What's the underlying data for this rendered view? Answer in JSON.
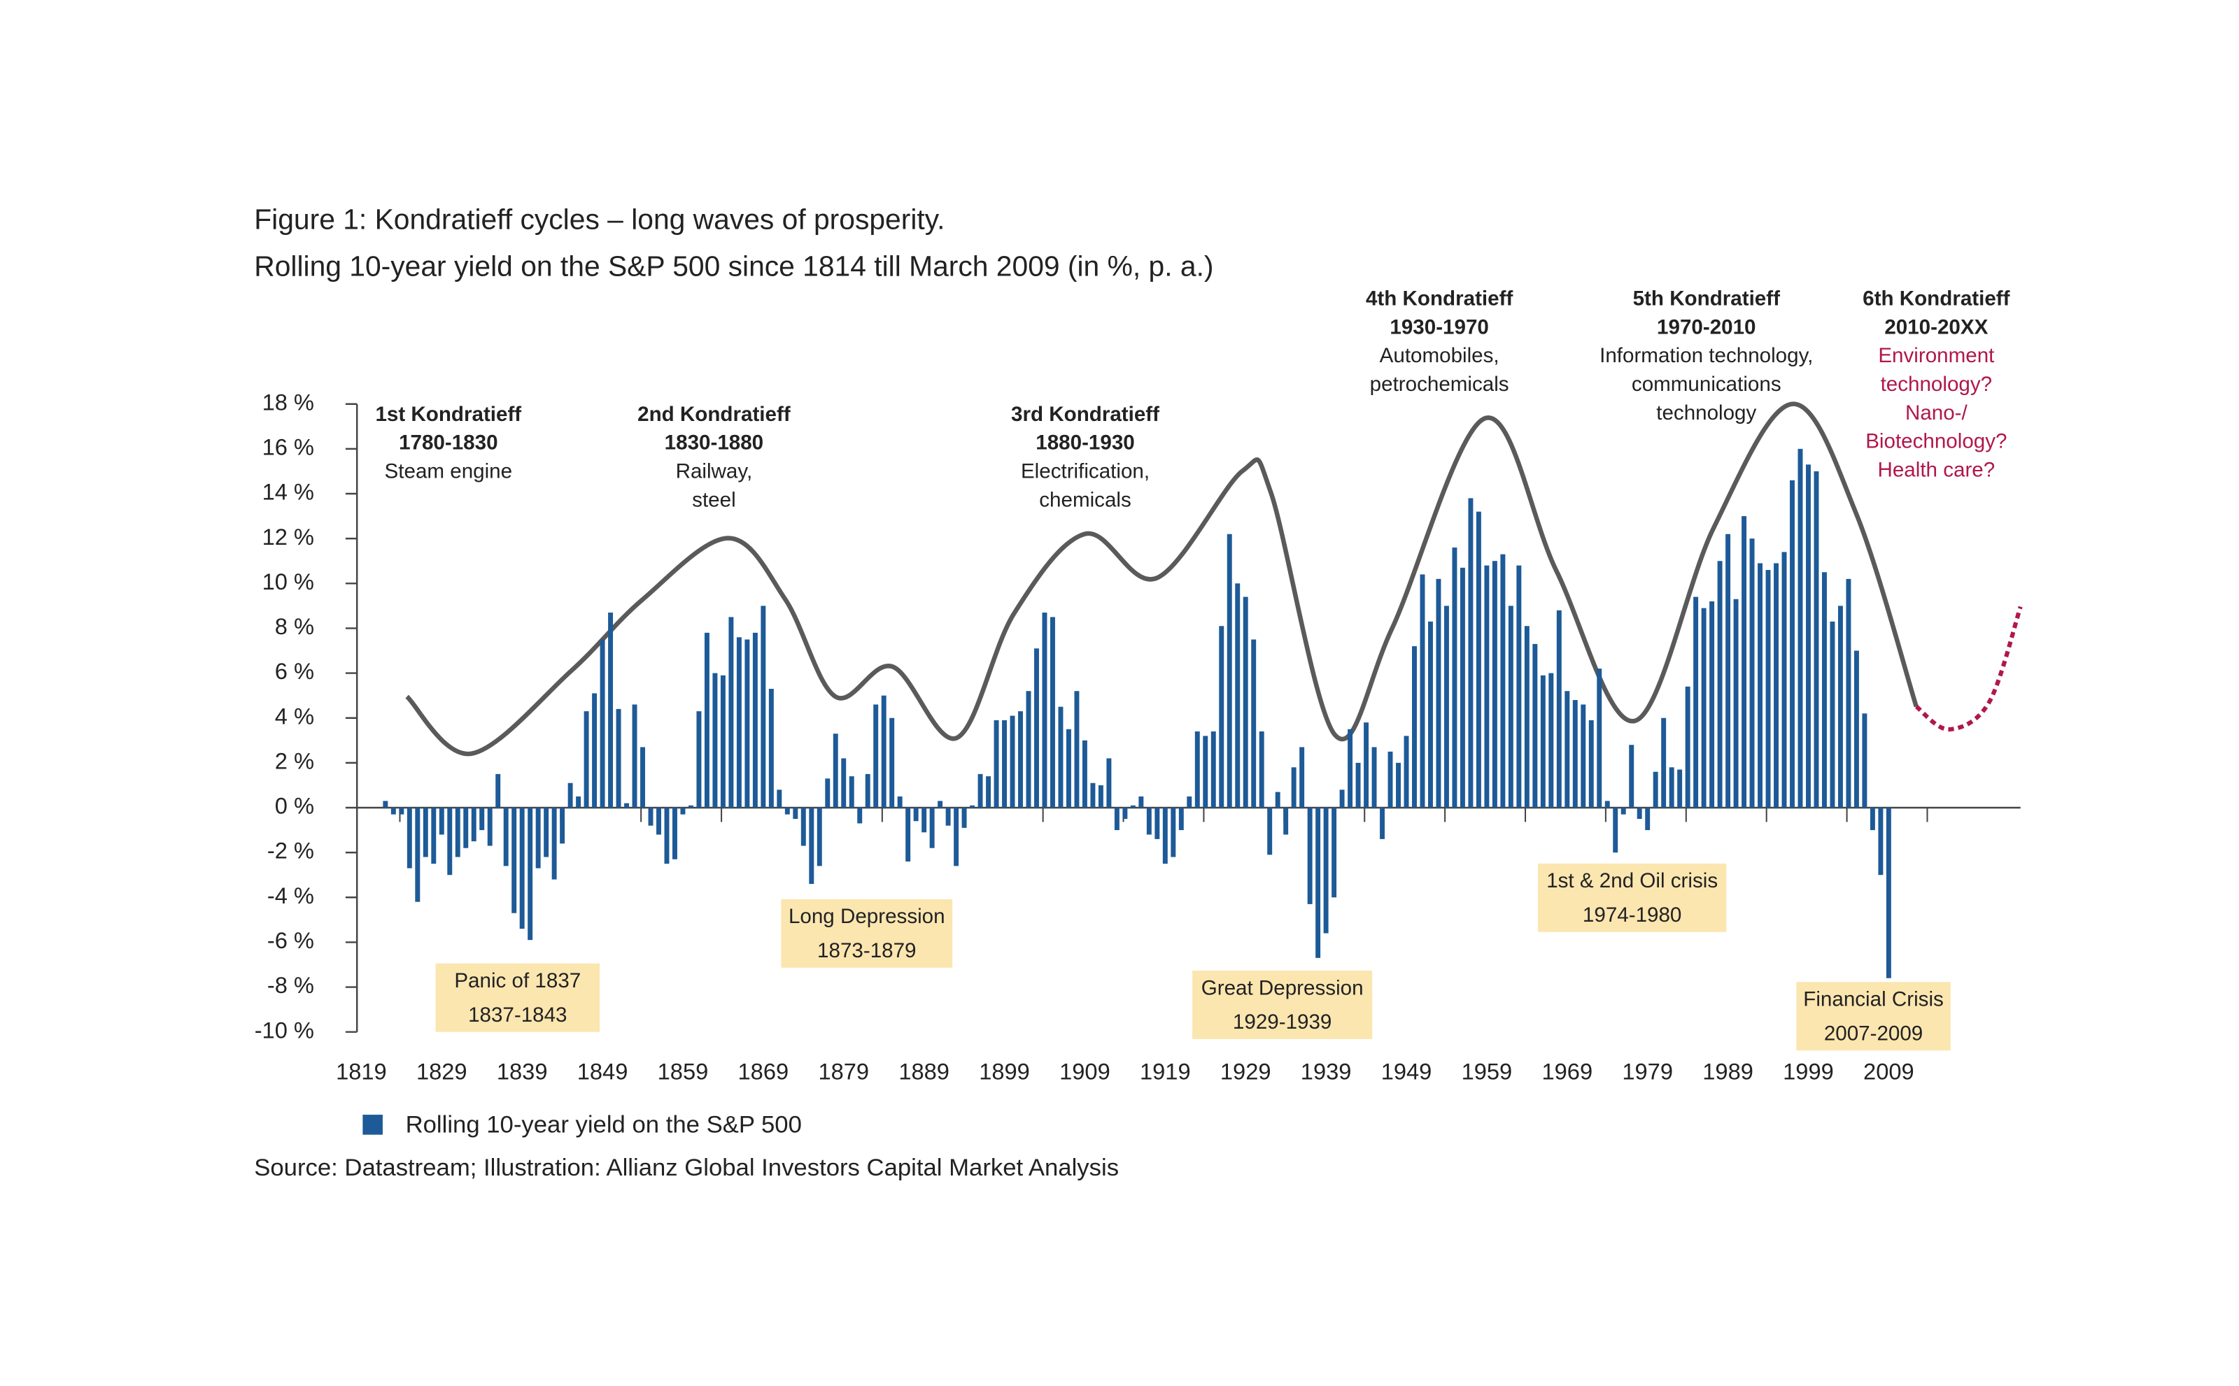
{
  "chart_data": {
    "type": "bar",
    "title": "Figure 1: Kondratieff cycles – long waves of prosperity.",
    "subtitle": "Rolling 10-year yield on the S&P 500 since 1814 till March 2009 (in %, p. a.)",
    "source": "Source: Datastream; Illustration: Allianz Global Investors Capital Market Analysis",
    "series": [
      {
        "name": "Rolling 10-year yield on the S&P 500",
        "color": "#1d5a97",
        "values": [
          0.3,
          -0.3,
          -0.3,
          -2.7,
          -4.2,
          -2.2,
          -2.5,
          -1.2,
          -3.0,
          -2.2,
          -1.8,
          -1.5,
          -1.0,
          -1.7,
          1.5,
          -2.6,
          -4.7,
          -5.4,
          -5.9,
          -2.7,
          -2.2,
          -3.2,
          -1.6,
          1.1,
          0.5,
          4.3,
          5.1,
          7.5,
          8.7,
          4.4,
          0.2,
          4.6,
          2.7,
          -0.8,
          -1.2,
          -2.5,
          -2.3,
          -0.3,
          0.1,
          4.3,
          7.8,
          6.0,
          5.9,
          8.5,
          7.6,
          7.5,
          7.8,
          9.0,
          5.3,
          0.8,
          -0.3,
          -0.5,
          -1.7,
          -3.4,
          -2.6,
          1.3,
          3.3,
          2.2,
          1.4,
          -0.7,
          1.5,
          4.6,
          5.0,
          4.0,
          0.5,
          -2.4,
          -0.6,
          -1.1,
          -1.8,
          0.3,
          -0.8,
          -2.6,
          -0.9,
          0.1,
          1.5,
          1.4,
          3.9,
          3.9,
          4.1,
          4.3,
          5.2,
          7.1,
          8.7,
          8.5,
          4.5,
          3.5,
          5.2,
          3.0,
          1.1,
          1.0,
          2.2,
          -1.0,
          -0.5,
          0.1,
          0.5,
          -1.2,
          -1.4,
          -2.5,
          -2.2,
          -1.0,
          0.5,
          3.4,
          3.2,
          3.4,
          8.1,
          12.2,
          10.0,
          9.4,
          7.5,
          3.4,
          -2.1,
          0.7,
          -1.2,
          1.8,
          2.7,
          -4.3,
          -6.7,
          -5.6,
          -4.0,
          0.8,
          3.5,
          2.0,
          3.8,
          2.7,
          -1.4,
          2.5,
          2.0,
          3.2,
          7.2,
          10.4,
          8.3,
          10.2,
          9.0,
          11.6,
          10.7,
          13.8,
          13.2,
          10.8,
          11.0,
          11.3,
          9.0,
          10.8,
          8.1,
          7.3,
          5.9,
          6.0,
          8.8,
          5.2,
          4.8,
          4.6,
          3.9,
          6.2,
          0.3,
          -2.0,
          -0.3,
          2.8,
          -0.5,
          -1.0,
          1.6,
          4.0,
          1.8,
          1.7,
          5.4,
          9.4,
          8.9,
          9.2,
          11.0,
          12.2,
          9.3,
          13.0,
          12.0,
          10.9,
          10.6,
          10.9,
          11.4,
          14.6,
          16.0,
          15.3,
          15.0,
          10.5,
          8.3,
          9.0,
          10.2,
          7.0,
          4.2,
          -1.0,
          -3.0,
          -7.6
        ]
      }
    ],
    "x": [
      1822,
      1823,
      1824,
      1825,
      1826,
      1827,
      1828,
      1829,
      1830,
      1831,
      1832,
      1833,
      1834,
      1835,
      1836,
      1837,
      1838,
      1839,
      1840,
      1841,
      1842,
      1843,
      1844,
      1845,
      1846,
      1847,
      1848,
      1849,
      1850,
      1851,
      1852,
      1853,
      1854,
      1855,
      1856,
      1857,
      1858,
      1859,
      1860,
      1861,
      1862,
      1863,
      1864,
      1865,
      1866,
      1867,
      1868,
      1869,
      1870,
      1871,
      1872,
      1873,
      1874,
      1875,
      1876,
      1877,
      1878,
      1879,
      1880,
      1881,
      1882,
      1883,
      1884,
      1885,
      1886,
      1887,
      1888,
      1889,
      1890,
      1891,
      1892,
      1893,
      1894,
      1895,
      1896,
      1897,
      1898,
      1899,
      1900,
      1901,
      1902,
      1903,
      1904,
      1905,
      1906,
      1907,
      1908,
      1909,
      1910,
      1911,
      1912,
      1913,
      1914,
      1915,
      1916,
      1917,
      1918,
      1919,
      1920,
      1921,
      1922,
      1923,
      1924,
      1925,
      1926,
      1927,
      1928,
      1929,
      1930,
      1931,
      1932,
      1933,
      1934,
      1935,
      1936,
      1937,
      1938,
      1939,
      1940,
      1941,
      1942,
      1943,
      1944,
      1945,
      1946,
      1947,
      1948,
      1949,
      1950,
      1951,
      1952,
      1953,
      1954,
      1955,
      1956,
      1957,
      1958,
      1959,
      1960,
      1961,
      1962,
      1963,
      1964,
      1965,
      1966,
      1967,
      1968,
      1969,
      1970,
      1971,
      1972,
      1973,
      1974,
      1975,
      1976,
      1977,
      1978,
      1979,
      1980,
      1981,
      1982,
      1983,
      1984,
      1985,
      1986,
      1987,
      1988,
      1989,
      1990,
      1991,
      1992,
      1993,
      1994,
      1995,
      1996,
      1997,
      1998,
      1999,
      2000,
      2001,
      2002,
      2003,
      2004,
      2005,
      2006,
      2007,
      2008,
      2009
    ],
    "xlim": [
      1818,
      2026
    ],
    "xticks": [
      1819,
      1829,
      1839,
      1849,
      1859,
      1869,
      1879,
      1889,
      1899,
      1909,
      1919,
      1929,
      1939,
      1949,
      1959,
      1969,
      1979,
      1989,
      1999,
      2009
    ],
    "ylim": [
      -10,
      18
    ],
    "yticks": [
      {
        "value": 18,
        "label": "18 %"
      },
      {
        "value": 16,
        "label": "16 %"
      },
      {
        "value": 14,
        "label": "14 %"
      },
      {
        "value": 12,
        "label": "12 %"
      },
      {
        "value": 10,
        "label": "10 %"
      },
      {
        "value": 8,
        "label": "8 %"
      },
      {
        "value": 6,
        "label": "6 %"
      },
      {
        "value": 4,
        "label": "4 %"
      },
      {
        "value": 2,
        "label": "2 %"
      },
      {
        "value": 0,
        "label": "0 %"
      },
      {
        "value": -2,
        "label": "-2 %"
      },
      {
        "value": -4,
        "label": "-4 %"
      },
      {
        "value": -6,
        "label": "-6 %"
      },
      {
        "value": -8,
        "label": "-8 %"
      },
      {
        "value": -10,
        "label": "-10 %"
      }
    ],
    "grid": false,
    "legend": "bottom-left",
    "cycles": [
      {
        "title": "1st Kondratieff",
        "period": "1780-1830",
        "lines": [
          "Steam engine"
        ]
      },
      {
        "title": "2nd Kondratieff",
        "period": "1830-1880",
        "lines": [
          "Railway,",
          "steel"
        ]
      },
      {
        "title": "3rd Kondratieff",
        "period": "1880-1930",
        "lines": [
          "Electrification,",
          "chemicals"
        ]
      },
      {
        "title": "4th Kondratieff",
        "period": "1930-1970",
        "lines": [
          "Automobiles,",
          "petrochemicals"
        ]
      },
      {
        "title": "5th Kondratieff",
        "period": "1970-2010",
        "lines": [
          "Information technology,",
          "communications",
          "technology"
        ]
      },
      {
        "title": "6th Kondratieff",
        "period": "2010-20XX",
        "lines": [
          "Environment",
          "technology?",
          "Nano-/",
          "Biotechnology?",
          "Health care?"
        ]
      }
    ],
    "crises": [
      {
        "label": "Panic of 1837",
        "period": "1837-1843"
      },
      {
        "label": "Long Depression",
        "period": "1873-1879"
      },
      {
        "label": "Great Depression",
        "period": "1929-1939"
      },
      {
        "label": "1st & 2nd Oil crisis",
        "period": "1974-1980"
      },
      {
        "label": "Financial Crisis",
        "period": "2007-2009"
      }
    ]
  }
}
